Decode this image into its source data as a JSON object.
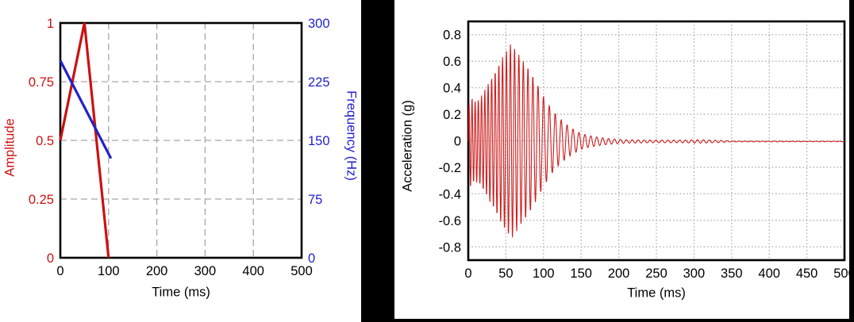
{
  "figure": {
    "background": "#ffffff",
    "band_color": "#000000",
    "frame_color": "#000000",
    "grid_color_left_chart": "#a6a6a6",
    "grid_color_right_chart": "#aaaaaa"
  },
  "chart_data": [
    {
      "type": "line",
      "position": "left",
      "title": "",
      "xlabel": "Time (ms)",
      "ylabel_left": "Amplitude",
      "ylabel_right": "Frequency (Hz)",
      "xlim": [
        0,
        500
      ],
      "xticks": [
        0,
        100,
        200,
        300,
        400,
        500
      ],
      "xtick_labels": [
        "0",
        "100",
        "200",
        "300",
        "400",
        "500"
      ],
      "ylim_left": [
        0,
        1
      ],
      "yticks_left": [
        0,
        0.25,
        0.5,
        0.75,
        1
      ],
      "ytick_labels_left": [
        "0",
        "0.25",
        "0.5",
        "0.75",
        "1"
      ],
      "ylim_right": [
        0,
        300
      ],
      "yticks_right": [
        0,
        75,
        150,
        225,
        300
      ],
      "ytick_labels_right": [
        "0",
        "75",
        "150",
        "225",
        "300"
      ],
      "grid_style": "dashed",
      "legend": "none",
      "axis_label_colors": {
        "left": "#cc1111",
        "right": "#2222cc",
        "x": "#000000"
      },
      "series": [
        {
          "name": "amplitude-envelope",
          "yaxis": "left",
          "color": "#cc1111",
          "line_width": 3.2,
          "points": [
            [
              0,
              0.5
            ],
            [
              50,
              1
            ],
            [
              100,
              0
            ]
          ]
        },
        {
          "name": "frequency-sweep",
          "yaxis": "right",
          "color": "#2222cc",
          "line_width": 3.2,
          "points": [
            [
              0,
              252
            ],
            [
              105,
              127
            ]
          ]
        }
      ]
    },
    {
      "type": "line",
      "position": "right",
      "title": "",
      "xlabel": "Time (ms)",
      "ylabel": "Acceleration (g)",
      "xlim": [
        0,
        500
      ],
      "xticks": [
        0,
        50,
        100,
        150,
        200,
        250,
        300,
        350,
        400,
        450,
        500
      ],
      "xtick_labels": [
        "0",
        "50",
        "100",
        "150",
        "200",
        "250",
        "300",
        "350",
        "400",
        "450",
        "500"
      ],
      "ylim": [
        -0.9,
        0.9
      ],
      "yticks": [
        0.8,
        0.6,
        0.4,
        0.2,
        0,
        -0.2,
        -0.4,
        -0.6,
        -0.8
      ],
      "ytick_labels": [
        "0.8",
        "0.6",
        "0.4",
        "0.2",
        "0",
        "-0.2",
        "-0.4",
        "-0.6",
        "-0.8"
      ],
      "grid_style": "dotted",
      "legend": "none",
      "axis_label_colors": {
        "left": "#000000",
        "x": "#000000"
      },
      "series": [
        {
          "name": "acceleration-waveform",
          "color": "#cc1d1d",
          "line_width": 1.1,
          "waveform": {
            "freq_start_hz": 252,
            "freq_end_hz": 127,
            "sweep_end_ms": 105,
            "baseline_offset_g": -0.005,
            "peak_g": 0.74,
            "envelope_points": [
              [
                0,
                0.2
              ],
              [
                2,
                0.36
              ],
              [
                8,
                0.3
              ],
              [
                15,
                0.32
              ],
              [
                25,
                0.42
              ],
              [
                35,
                0.52
              ],
              [
                45,
                0.63
              ],
              [
                57,
                0.74
              ],
              [
                70,
                0.63
              ],
              [
                80,
                0.55
              ],
              [
                90,
                0.45
              ],
              [
                100,
                0.34
              ],
              [
                110,
                0.25
              ],
              [
                120,
                0.18
              ],
              [
                130,
                0.13
              ],
              [
                140,
                0.09
              ],
              [
                150,
                0.06
              ],
              [
                162,
                0.042
              ],
              [
                175,
                0.03
              ],
              [
                190,
                0.02
              ],
              [
                210,
                0.013
              ],
              [
                240,
                0.01
              ],
              [
                280,
                0.01
              ],
              [
                310,
                0.013
              ],
              [
                335,
                0.008
              ],
              [
                350,
                0.003
              ],
              [
                500,
                0.002
              ]
            ]
          }
        }
      ]
    }
  ]
}
